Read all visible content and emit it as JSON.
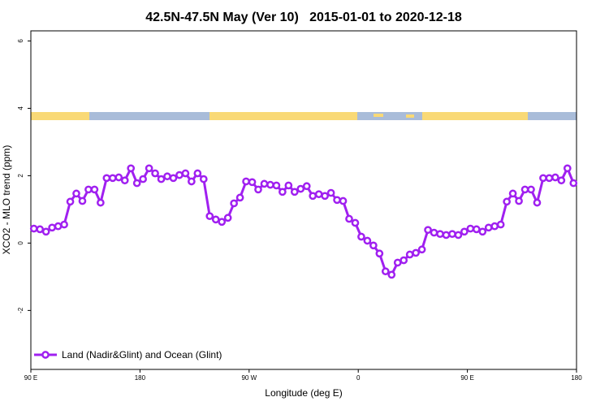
{
  "chart_data": {
    "type": "line",
    "title": "42.5N-47.5N May (Ver 10)   2015-01-01 to 2020-12-18",
    "x_label": "Longitude (deg E)",
    "y_label": "XCO2 - MLO trend (ppm)",
    "xlim": [
      90,
      540
    ],
    "xticks": [
      {
        "value": 90,
        "label": "90 E"
      },
      180,
      {
        "value": 270,
        "label": "90 W"
      },
      {
        "value": 360,
        "label": "0"
      },
      {
        "value": 450,
        "label": "90 E"
      },
      {
        "value": 540,
        "label": "180"
      }
    ],
    "ylim": [
      -3.75,
      6.3
    ],
    "yticks": [
      -2,
      0,
      2,
      4,
      6
    ],
    "legend": "bottom-left",
    "x": [
      92.5,
      97.5,
      102.5,
      107.5,
      112.5,
      117.5,
      122.5,
      127.5,
      132.5,
      137.5,
      142.5,
      147.5,
      152.5,
      157.5,
      162.5,
      167.5,
      172.5,
      177.5,
      182.5,
      187.5,
      192.5,
      197.5,
      202.5,
      207.5,
      212.5,
      217.5,
      222.5,
      227.5,
      232.5,
      237.5,
      242.5,
      247.5,
      252.5,
      257.5,
      262.5,
      267.5,
      272.5,
      277.5,
      282.5,
      287.5,
      292.5,
      297.5,
      302.5,
      307.5,
      312.5,
      317.5,
      322.5,
      327.5,
      332.5,
      337.5,
      342.5,
      347.5,
      352.5,
      357.5,
      362.5,
      367.5,
      372.5,
      377.5,
      382.5,
      387.5,
      392.5,
      397.5,
      402.5,
      407.5,
      412.5,
      417.5,
      422.5,
      427.5,
      432.5,
      437.5,
      442.5,
      447.5,
      452.5,
      457.5,
      462.5,
      467.5,
      472.5,
      477.5,
      482.5,
      487.5,
      492.5,
      497.5,
      502.5,
      507.5,
      512.5,
      517.5,
      522.5,
      527.5,
      532.5,
      537.5
    ],
    "series": [
      {
        "name": "Land (Nadir&Glint) and Ocean (Glint)",
        "color": "#a020f0",
        "values": [
          0.43,
          0.41,
          0.34,
          0.46,
          0.5,
          0.55,
          1.23,
          1.47,
          1.25,
          1.59,
          1.59,
          1.2,
          1.93,
          1.93,
          1.95,
          1.86,
          2.22,
          1.78,
          1.9,
          2.22,
          2.07,
          1.9,
          1.98,
          1.93,
          2.02,
          2.07,
          1.83,
          2.07,
          1.9,
          0.8,
          0.7,
          0.63,
          0.75,
          1.18,
          1.35,
          1.83,
          1.81,
          1.59,
          1.76,
          1.73,
          1.71,
          1.52,
          1.71,
          1.52,
          1.61,
          1.69,
          1.4,
          1.45,
          1.4,
          1.49,
          1.28,
          1.25,
          0.72,
          0.6,
          0.19,
          0.07,
          -0.07,
          -0.31,
          -0.84,
          -0.94,
          -0.58,
          -0.51,
          -0.34,
          -0.29,
          -0.19,
          0.39,
          0.31,
          0.27,
          0.24,
          0.27,
          0.24,
          0.34,
          0.43,
          0.41,
          0.34,
          0.46,
          0.5,
          0.55,
          1.23,
          1.47,
          1.25,
          1.59,
          1.59,
          1.2,
          1.93,
          1.93,
          1.95,
          1.86,
          2.22,
          1.78
        ]
      }
    ]
  }
}
